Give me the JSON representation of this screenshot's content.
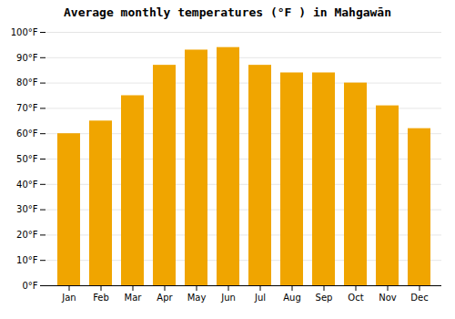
{
  "chart_data": {
    "type": "bar",
    "title": "Average monthly temperatures (°F ) in Mahgawān",
    "categories": [
      "Jan",
      "Feb",
      "Mar",
      "Apr",
      "May",
      "Jun",
      "Jul",
      "Aug",
      "Sep",
      "Oct",
      "Nov",
      "Dec"
    ],
    "values": [
      60,
      65,
      75,
      87,
      93,
      94,
      87,
      84,
      84,
      80,
      71,
      62
    ],
    "color": "#F0A500",
    "ylim": [
      0,
      100
    ],
    "yticks": [
      {
        "value": 0,
        "label": "0°F"
      },
      {
        "value": 10,
        "label": "10°F"
      },
      {
        "value": 20,
        "label": "20°F"
      },
      {
        "value": 30,
        "label": "30°F"
      },
      {
        "value": 40,
        "label": "40°F"
      },
      {
        "value": 50,
        "label": "50°F"
      },
      {
        "value": 60,
        "label": "60°F"
      },
      {
        "value": 70,
        "label": "70°F"
      },
      {
        "value": 80,
        "label": "80°F"
      },
      {
        "value": 90,
        "label": "90°F"
      },
      {
        "value": 100,
        "label": "100°F"
      }
    ],
    "grid": true
  }
}
